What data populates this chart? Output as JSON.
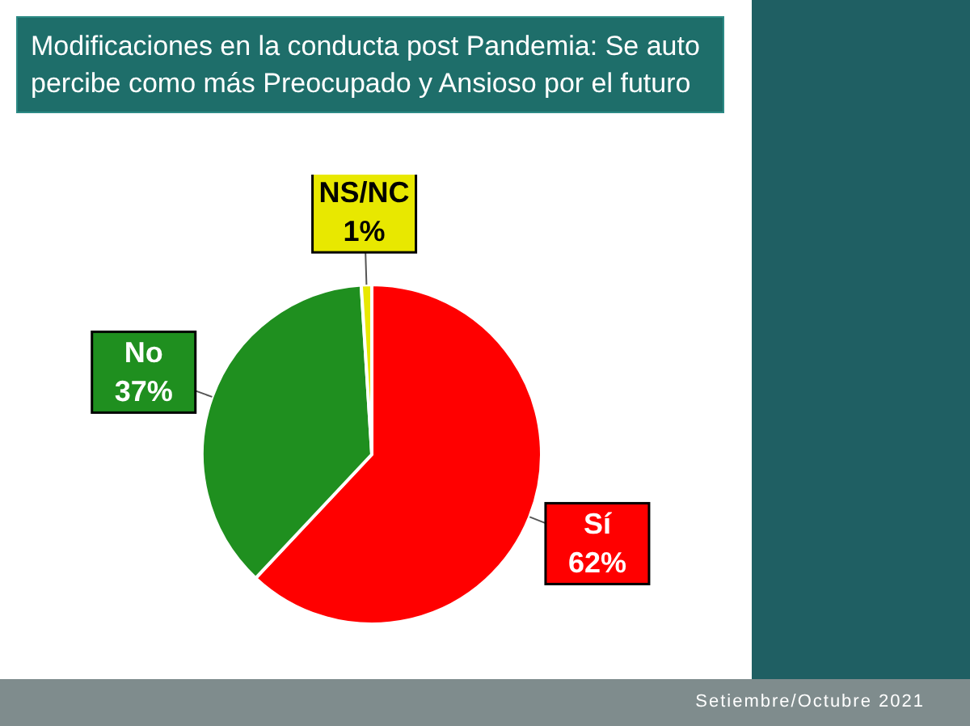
{
  "chart_data": {
    "type": "pie",
    "title": "Modificaciones en la conducta post Pandemia: Se auto percibe como más Preocupado y Ansioso por el futuro",
    "categories": [
      "Sí",
      "No",
      "NS/NC"
    ],
    "values": [
      62,
      37,
      1
    ],
    "colors": [
      "#ff0000",
      "#1f8f1f",
      "#e8e800"
    ],
    "value_labels": [
      "62%",
      "37%",
      "1%"
    ],
    "annotations": [
      "Setiembre/Octubre 2021"
    ]
  }
}
